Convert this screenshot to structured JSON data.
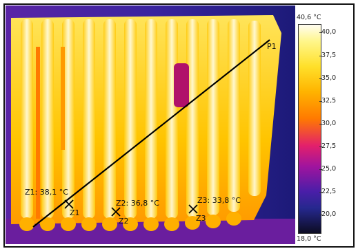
{
  "scale": {
    "max_label": "40,6 °C",
    "min_label": "18,0 °C",
    "ticks": [
      "40,0",
      "37,5",
      "35,0",
      "32,5",
      "30,0",
      "27,5",
      "25,0",
      "22,5",
      "20,0"
    ]
  },
  "markers": {
    "p1": "P1",
    "z1_reading": "Z1: 38,1 °C",
    "z1": "Z1",
    "z2_reading": "Z2: 36,8 °C",
    "z2": "Z2",
    "z3_reading": "Z3: 33,8 °C",
    "z3": "Z3"
  }
}
